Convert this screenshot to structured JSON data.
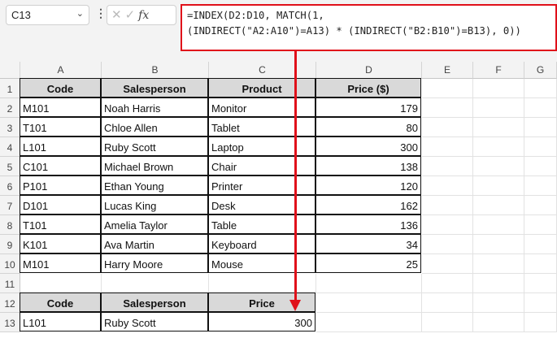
{
  "name_box": "C13",
  "formula_line1": "=INDEX(D2:D10, MATCH(1,",
  "formula_line2": "(INDIRECT(\"A2:A10\")=A13) * (INDIRECT(\"B2:B10\")=B13), 0))",
  "columns": [
    "A",
    "B",
    "C",
    "D",
    "E",
    "F",
    "G"
  ],
  "rows": [
    "1",
    "2",
    "3",
    "4",
    "5",
    "6",
    "7",
    "8",
    "9",
    "10",
    "11",
    "12",
    "13"
  ],
  "table1": {
    "headers": [
      "Code",
      "Salesperson",
      "Product",
      "Price ($)"
    ],
    "data": [
      [
        "M101",
        "Noah Harris",
        "Monitor",
        "179"
      ],
      [
        "T101",
        "Chloe Allen",
        "Tablet",
        "80"
      ],
      [
        "L101",
        "Ruby Scott",
        "Laptop",
        "300"
      ],
      [
        "C101",
        "Michael Brown",
        "Chair",
        "138"
      ],
      [
        "P101",
        "Ethan Young",
        "Printer",
        "120"
      ],
      [
        "D101",
        "Lucas King",
        "Desk",
        "162"
      ],
      [
        "T101",
        "Amelia Taylor",
        "Table",
        "136"
      ],
      [
        "K101",
        "Ava Martin",
        "Keyboard",
        "34"
      ],
      [
        "M101",
        "Harry Moore",
        "Mouse",
        "25"
      ]
    ]
  },
  "table2": {
    "headers": [
      "Code",
      "Salesperson",
      "Price"
    ],
    "data": [
      "L101",
      "Ruby Scott",
      "300"
    ]
  },
  "accent": "#e0101a"
}
